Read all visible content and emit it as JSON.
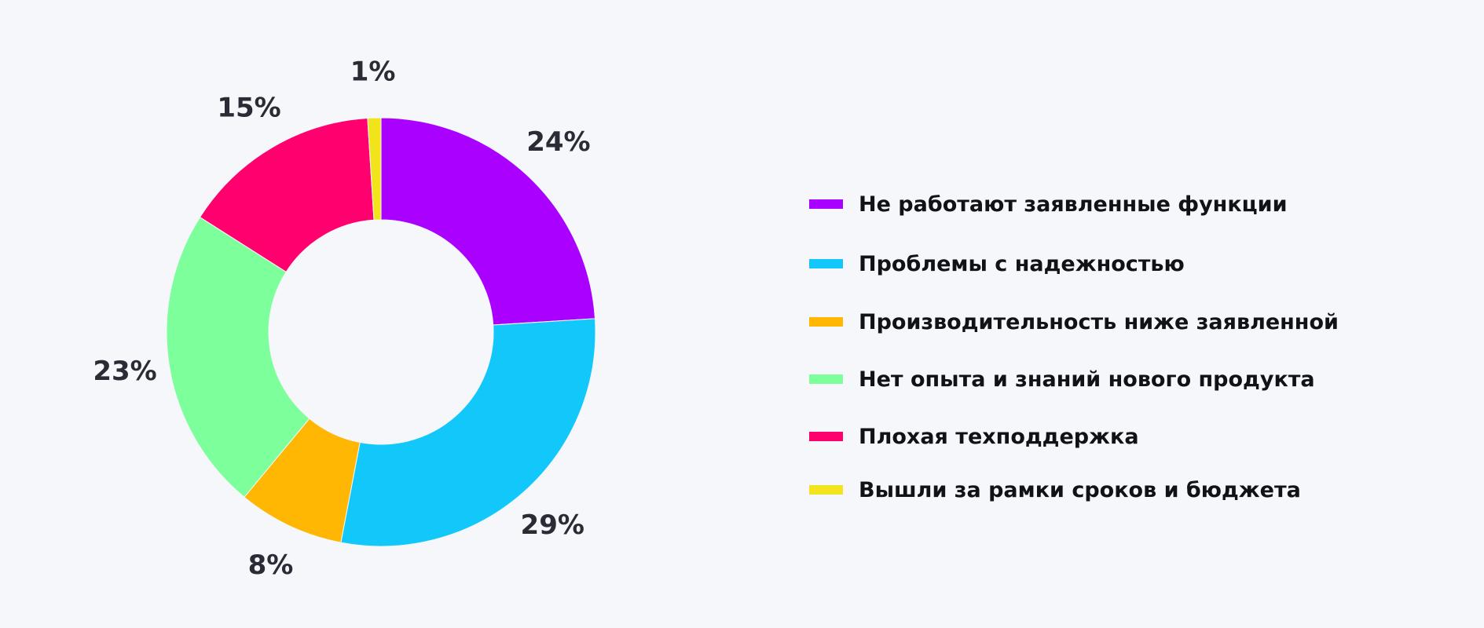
{
  "chart_data": {
    "type": "pie",
    "donut": true,
    "legend_position": "right",
    "series": [
      {
        "name": "Не работают заявленные функции",
        "value": 24,
        "label": "24%",
        "color": "#aa00ff"
      },
      {
        "name": "Проблемы с надежностью",
        "value": 29,
        "label": "29%",
        "color": "#12c8fa"
      },
      {
        "name": "Производительность ниже заявленной",
        "value": 8,
        "label": "8%",
        "color": "#ffb703"
      },
      {
        "name": "Нет опыта и знаний нового продукта",
        "value": 23,
        "label": "23%",
        "color": "#7dff9b"
      },
      {
        "name": "Плохая техподдержка",
        "value": 15,
        "label": "15%",
        "color": "#ff006e"
      },
      {
        "name": "Вышли за рамки сроков и бюджета",
        "value": 1,
        "label": "1%",
        "color": "#f2e41b"
      }
    ]
  }
}
